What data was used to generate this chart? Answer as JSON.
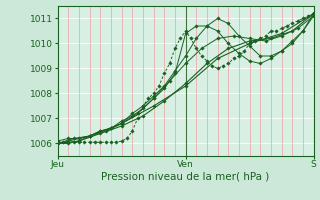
{
  "bg_color": "#cce8d8",
  "plot_bg_color": "#d8f0e4",
  "grid_color_v": "#f0a0a0",
  "grid_color_h": "#ffffff",
  "line_color": "#1a6020",
  "xlabel": "Pression niveau de la mer( hPa )",
  "xlabel_fontsize": 7.5,
  "tick_label_fontsize": 6.5,
  "xlim": [
    0,
    48
  ],
  "ylim": [
    1005.5,
    1011.5
  ],
  "yticks": [
    1006,
    1007,
    1008,
    1009,
    1010,
    1011
  ],
  "xtick_positions": [
    0,
    24,
    48
  ],
  "xtick_labels": [
    "Jeu",
    "Ven",
    "S"
  ],
  "vline_x": 24,
  "series": [
    {
      "x": [
        0,
        1,
        2,
        3,
        4,
        5,
        6,
        7,
        8,
        9,
        10,
        11,
        12,
        13,
        14,
        15,
        16,
        17,
        18,
        19,
        20,
        21,
        22,
        23,
        24,
        25,
        26,
        27,
        28,
        29,
        30,
        31,
        32,
        33,
        34,
        35,
        36,
        37,
        38,
        39,
        40,
        41,
        42,
        43,
        44,
        45,
        46,
        47,
        48
      ],
      "y": [
        1006.05,
        1006.05,
        1006.05,
        1006.05,
        1006.05,
        1006.05,
        1006.05,
        1006.05,
        1006.05,
        1006.05,
        1006.05,
        1006.05,
        1006.1,
        1006.2,
        1006.5,
        1007.0,
        1007.5,
        1007.8,
        1008.0,
        1008.3,
        1008.8,
        1009.2,
        1009.8,
        1010.2,
        1010.5,
        1010.2,
        1009.8,
        1009.5,
        1009.3,
        1009.1,
        1009.0,
        1009.1,
        1009.2,
        1009.4,
        1009.5,
        1009.7,
        1010.0,
        1010.1,
        1010.2,
        1010.3,
        1010.5,
        1010.5,
        1010.6,
        1010.7,
        1010.8,
        1010.9,
        1011.0,
        1011.1,
        1011.2
      ],
      "marker": "D",
      "markersize": 1.8,
      "linewidth": 0.7,
      "dashes": [
        2.5,
        2
      ]
    },
    {
      "x": [
        0,
        2,
        4,
        6,
        8,
        10,
        12,
        14,
        16,
        18,
        20,
        22,
        24,
        26,
        28,
        30,
        32,
        34,
        36,
        38,
        40,
        42,
        44,
        46,
        48
      ],
      "y": [
        1006.0,
        1006.0,
        1006.1,
        1006.3,
        1006.5,
        1006.6,
        1006.8,
        1007.2,
        1007.5,
        1007.9,
        1008.3,
        1008.9,
        1009.5,
        1010.2,
        1010.7,
        1011.0,
        1010.8,
        1010.3,
        1009.9,
        1009.5,
        1009.5,
        1009.7,
        1010.0,
        1010.5,
        1011.2
      ],
      "marker": "D",
      "markersize": 1.8,
      "linewidth": 0.7,
      "dashes": []
    },
    {
      "x": [
        0,
        2,
        4,
        6,
        8,
        10,
        12,
        14,
        16,
        18,
        20,
        22,
        24,
        26,
        28,
        30,
        32,
        34,
        36,
        38,
        40,
        42,
        44,
        46,
        48
      ],
      "y": [
        1006.1,
        1006.2,
        1006.2,
        1006.3,
        1006.5,
        1006.6,
        1006.9,
        1007.1,
        1007.4,
        1007.8,
        1008.2,
        1008.8,
        1010.4,
        1010.7,
        1010.7,
        1010.5,
        1010.0,
        1009.6,
        1009.3,
        1009.2,
        1009.4,
        1009.7,
        1010.1,
        1010.5,
        1011.1
      ],
      "marker": "D",
      "markersize": 1.8,
      "linewidth": 0.7,
      "dashes": []
    },
    {
      "x": [
        0,
        3,
        6,
        9,
        12,
        15,
        18,
        21,
        24,
        27,
        30,
        33,
        36,
        39,
        42,
        45,
        48
      ],
      "y": [
        1006.0,
        1006.2,
        1006.3,
        1006.5,
        1006.8,
        1007.2,
        1007.8,
        1008.5,
        1009.2,
        1009.8,
        1010.2,
        1010.3,
        1010.2,
        1010.1,
        1010.3,
        1010.6,
        1011.1
      ],
      "marker": "D",
      "markersize": 1.8,
      "linewidth": 0.7,
      "dashes": []
    },
    {
      "x": [
        0,
        4,
        8,
        12,
        16,
        20,
        24,
        28,
        32,
        36,
        40,
        44,
        48
      ],
      "y": [
        1006.0,
        1006.1,
        1006.4,
        1006.7,
        1007.1,
        1007.7,
        1008.4,
        1009.2,
        1009.8,
        1010.1,
        1010.2,
        1010.5,
        1011.2
      ],
      "marker": "D",
      "markersize": 1.8,
      "linewidth": 0.8,
      "dashes": []
    },
    {
      "x": [
        0,
        6,
        12,
        18,
        24,
        30,
        36,
        42,
        48
      ],
      "y": [
        1006.0,
        1006.3,
        1006.8,
        1007.5,
        1008.3,
        1009.4,
        1010.0,
        1010.4,
        1011.2
      ],
      "marker": "D",
      "markersize": 1.8,
      "linewidth": 0.8,
      "dashes": []
    }
  ]
}
